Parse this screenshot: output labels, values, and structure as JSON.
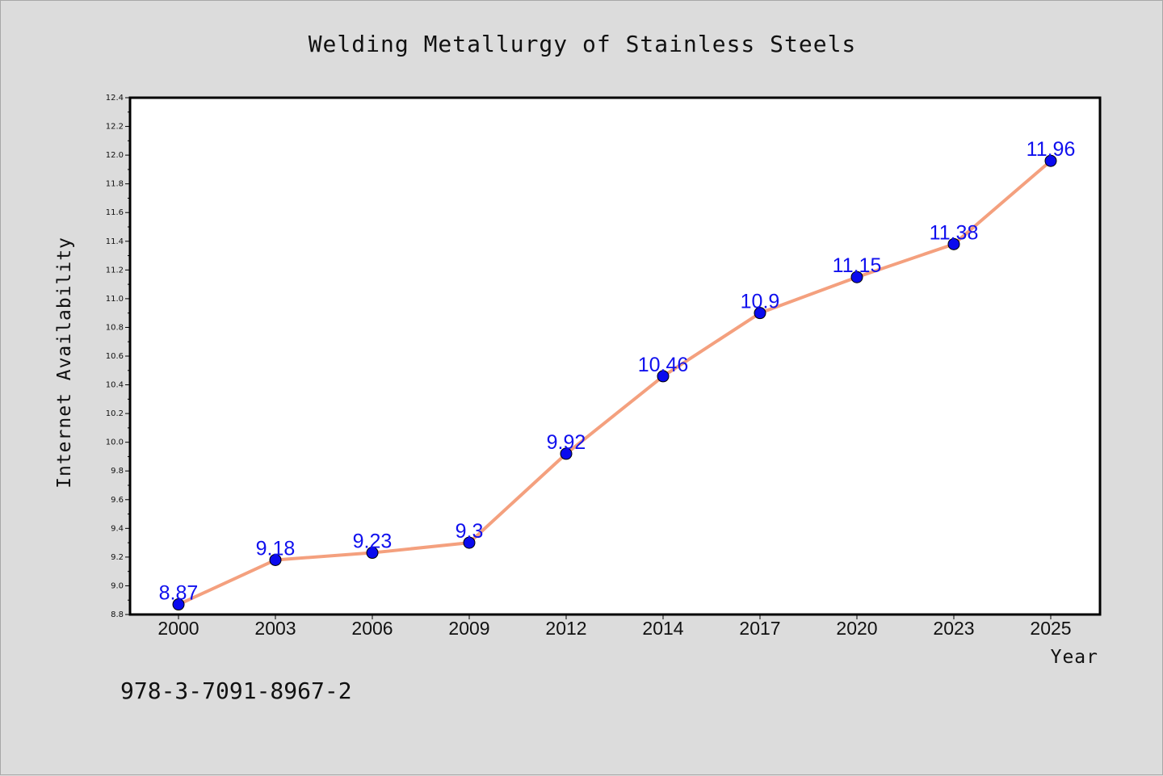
{
  "chart_data": {
    "type": "line",
    "title": "Welding Metallurgy of Stainless Steels",
    "xlabel": "Year",
    "ylabel": "Internet Availability",
    "categories": [
      "2000",
      "2003",
      "2006",
      "2009",
      "2012",
      "2014",
      "2017",
      "2020",
      "2023",
      "2025"
    ],
    "values": [
      8.87,
      9.18,
      9.23,
      9.3,
      9.92,
      10.46,
      10.9,
      11.15,
      11.38,
      11.96
    ],
    "data_labels": [
      "8.87",
      "9.18",
      "9.23",
      "9.3",
      "9.92",
      "10.46",
      "10.9",
      "11.15",
      "11.38",
      "11.96"
    ],
    "ylim": [
      8.8,
      12.4
    ],
    "yticks": [
      "8.8",
      "9.0",
      "9.2",
      "9.4",
      "9.6",
      "9.8",
      "10.0",
      "10.2",
      "10.4",
      "10.6",
      "10.8",
      "11.0",
      "11.2",
      "11.4",
      "11.6",
      "11.8",
      "12.0",
      "12.2",
      "12.4"
    ],
    "grid": false,
    "colors": {
      "line": "#f4a07e",
      "marker": "#0a0aee",
      "label": "#1010ee"
    }
  },
  "footer": {
    "isbn": "978-3-7091-8967-2"
  }
}
